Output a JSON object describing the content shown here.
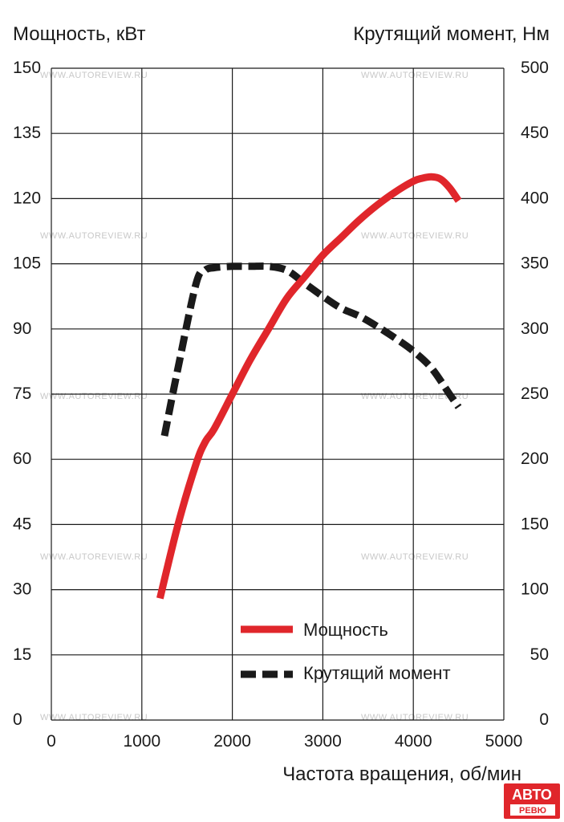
{
  "chart_data": {
    "type": "line",
    "x_label": "Частота вращения, об/мин",
    "y_left_label": "Мощность, кВт",
    "y_right_label": "Крутящий момент, Нм",
    "x_range": [
      0,
      5000
    ],
    "y_left_range": [
      0,
      150
    ],
    "y_right_range": [
      0,
      500
    ],
    "x_ticks": [
      "0",
      "1000",
      "2000",
      "3000",
      "4000",
      "5000"
    ],
    "y_left_ticks": [
      "0",
      "15",
      "30",
      "45",
      "60",
      "75",
      "90",
      "105",
      "120",
      "135",
      "150"
    ],
    "y_right_ticks": [
      "0",
      "50",
      "100",
      "150",
      "200",
      "250",
      "300",
      "350",
      "400",
      "450",
      "500"
    ],
    "grid": true,
    "legend_position": "bottom-center",
    "series": [
      {
        "name": "Мощность",
        "axis": "left",
        "style": "solid",
        "color": "#e0262b",
        "x": [
          1200,
          1400,
          1600,
          1700,
          1800,
          2000,
          2200,
          2400,
          2600,
          2800,
          3000,
          3200,
          3400,
          3600,
          3800,
          4000,
          4100,
          4200,
          4300,
          4400,
          4500
        ],
        "y": [
          28,
          45,
          59,
          64,
          67,
          75,
          83,
          90,
          97,
          102,
          107,
          111,
          115,
          118.5,
          121.5,
          124,
          124.7,
          125,
          124.5,
          122.5,
          119.5
        ]
      },
      {
        "name": "Крутящий момент",
        "axis": "right",
        "style": "dashed",
        "color": "#1a1a1a",
        "x": [
          1250,
          1400,
          1600,
          1700,
          1800,
          2000,
          2200,
          2400,
          2600,
          2800,
          3000,
          3200,
          3400,
          3600,
          3800,
          4000,
          4200,
          4400,
          4500
        ],
        "y": [
          218,
          270,
          335,
          345,
          347,
          348,
          348,
          348,
          345,
          335,
          325,
          316,
          310,
          302,
          293,
          283,
          270,
          250,
          240
        ]
      }
    ]
  },
  "watermark": "WWW.AUTOREVIEW.RU",
  "logo": {
    "top": "АВТО",
    "bottom": "РЕВЮ"
  },
  "colors": {
    "power": "#e0262b",
    "torque": "#1a1a1a",
    "grid": "#1a1a1a",
    "watermark": "#c8c8c8"
  }
}
